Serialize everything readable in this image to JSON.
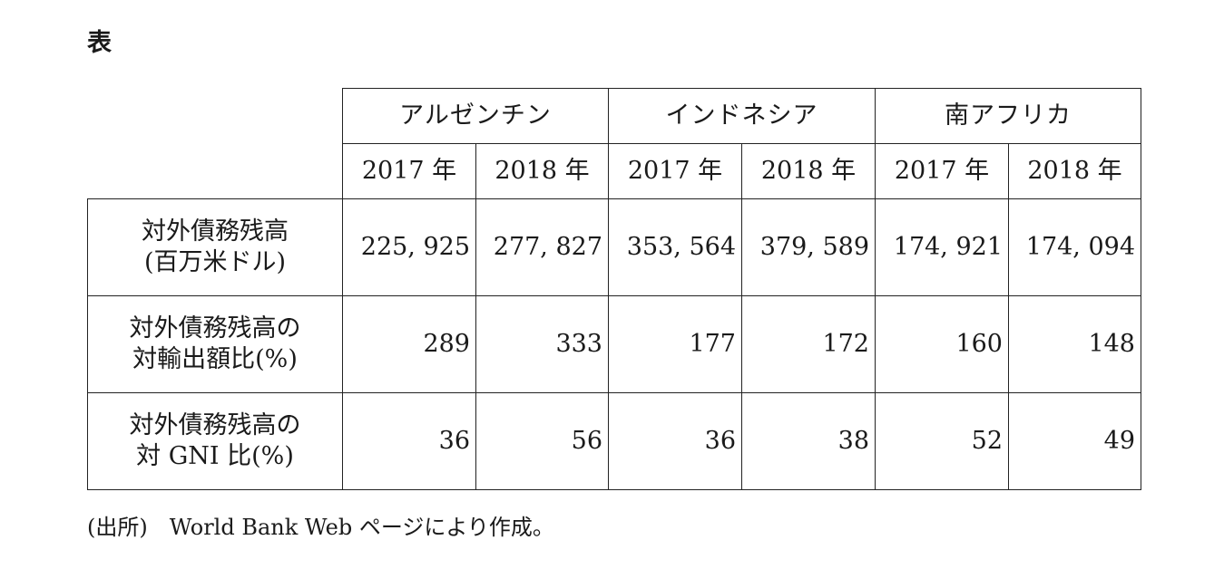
{
  "title": "表",
  "table": {
    "countries": [
      "アルゼンチン",
      "インドネシア",
      "南アフリカ"
    ],
    "years": [
      "2017 年",
      "2018 年",
      "2017 年",
      "2018 年",
      "2017 年",
      "2018 年"
    ],
    "rows": [
      {
        "label_line1": "対外債務残高",
        "label_line2": "(百万米ドル)",
        "values": [
          "225, 925",
          "277, 827",
          "353, 564",
          "379, 589",
          "174, 921",
          "174, 094"
        ]
      },
      {
        "label_line1": "対外債務残高の",
        "label_line2": "対輸出額比(%)",
        "values": [
          "289",
          "333",
          "177",
          "172",
          "160",
          "148"
        ]
      },
      {
        "label_line1": "対外債務残高の",
        "label_line2": "対 GNI 比(%)",
        "values": [
          "36",
          "56",
          "36",
          "38",
          "52",
          "49"
        ]
      }
    ]
  },
  "source": "(出所)　World Bank Web ページにより作成。"
}
